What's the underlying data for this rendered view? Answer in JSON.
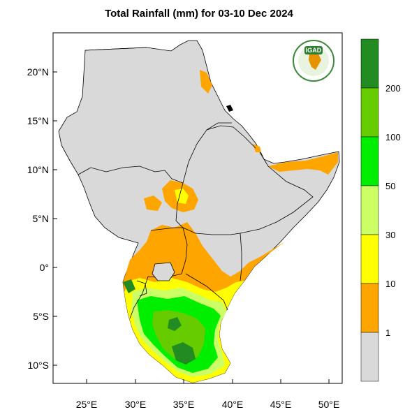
{
  "title": "Total Rainfall (mm) for 03-10 Dec 2024",
  "logo": {
    "text": "IGAD"
  },
  "map": {
    "lat_ticks": [
      "20°N",
      "15°N",
      "10°N",
      "5°N",
      "0°",
      "5°S",
      "10°S"
    ],
    "lon_ticks": [
      "25°E",
      "30°E",
      "35°E",
      "40°E",
      "45°E",
      "50°E"
    ],
    "colors": {
      "land": "#d9d9d9",
      "ocean": "#ffffff",
      "border": "#000000",
      "coast": "#888888"
    }
  },
  "colorbar": {
    "boundaries": [
      "1",
      "10",
      "30",
      "50",
      "100",
      "200"
    ],
    "bins": [
      {
        "range": "<1",
        "color": "#d9d9d9"
      },
      {
        "range": "1-10",
        "color": "#ffa500"
      },
      {
        "range": "10-30",
        "color": "#ffff00"
      },
      {
        "range": "30-50",
        "color": "#ccff66"
      },
      {
        "range": "50-100",
        "color": "#00ee00"
      },
      {
        "range": "100-200",
        "color": "#66cc00"
      },
      {
        "range": ">200",
        "color": "#228b22"
      }
    ]
  }
}
